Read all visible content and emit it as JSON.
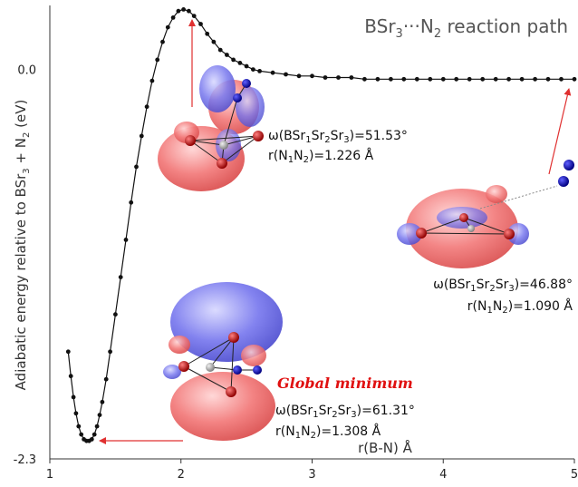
{
  "chart_data": {
    "type": "line",
    "title": "BSr3···N2 reaction path",
    "title_parts": {
      "main": "BSr",
      "sub1": "3",
      "mid": "···N",
      "sub2": "2",
      "tail": " reaction path"
    },
    "xlabel": "r(B-N) Å",
    "ylabel": "Adiabatic energy relative to BSr3 + N2 (eV)",
    "ylabel_parts": {
      "main": "Adiabatic energy relative to BSr",
      "sub1": "3",
      "mid": " + N",
      "sub2": "2",
      "tail": " (eV)"
    },
    "xlim": [
      1,
      5
    ],
    "ylim": [
      -2.3,
      0.35
    ],
    "xticks": [
      "1",
      "2",
      "3",
      "4",
      "5"
    ],
    "yticks": [
      {
        "value": 0.0,
        "label": "0.0"
      },
      {
        "value": -2.3,
        "label": "-2.3"
      }
    ],
    "grid": false,
    "x": [
      1.14,
      1.16,
      1.18,
      1.2,
      1.22,
      1.24,
      1.26,
      1.28,
      1.3,
      1.32,
      1.34,
      1.36,
      1.38,
      1.4,
      1.43,
      1.46,
      1.5,
      1.54,
      1.58,
      1.62,
      1.66,
      1.7,
      1.74,
      1.78,
      1.82,
      1.86,
      1.9,
      1.94,
      1.98,
      2.02,
      2.06,
      2.1,
      2.15,
      2.2,
      2.25,
      2.3,
      2.35,
      2.4,
      2.45,
      2.5,
      2.55,
      2.6,
      2.7,
      2.8,
      2.9,
      3.0,
      3.1,
      3.2,
      3.3,
      3.4,
      3.5,
      3.6,
      3.7,
      3.8,
      3.9,
      4.0,
      4.1,
      4.2,
      4.3,
      4.4,
      4.5,
      4.6,
      4.7,
      4.8,
      4.9,
      5.0
    ],
    "y": [
      -1.74,
      -1.89,
      -2.02,
      -2.12,
      -2.2,
      -2.25,
      -2.28,
      -2.29,
      -2.29,
      -2.28,
      -2.25,
      -2.2,
      -2.13,
      -2.05,
      -1.91,
      -1.74,
      -1.51,
      -1.28,
      -1.05,
      -0.82,
      -0.6,
      -0.41,
      -0.23,
      -0.07,
      0.06,
      0.17,
      0.26,
      0.32,
      0.36,
      0.37,
      0.36,
      0.33,
      0.28,
      0.22,
      0.17,
      0.12,
      0.09,
      0.06,
      0.04,
      0.02,
      0.0,
      -0.01,
      -0.02,
      -0.03,
      -0.04,
      -0.04,
      -0.05,
      -0.05,
      -0.05,
      -0.06,
      -0.06,
      -0.06,
      -0.06,
      -0.06,
      -0.06,
      -0.06,
      -0.06,
      -0.06,
      -0.06,
      -0.06,
      -0.06,
      -0.06,
      -0.06,
      -0.06,
      -0.06,
      -0.06
    ],
    "annotations": [
      {
        "id": "ts",
        "line1_pre": "ω(BSr",
        "line1_parts": [
          "1",
          "Sr",
          "2",
          "Sr",
          "3"
        ],
        "line1_post": ")=51.53°",
        "line2_pre": "r(N",
        "line2_mid": "N",
        "line2_post": ")=1.226 Å",
        "s1": "1",
        "s2": "2"
      },
      {
        "id": "dissociated",
        "line1_pre": "ω(BSr",
        "line1_parts": [
          "1",
          "Sr",
          "2",
          "Sr",
          "3"
        ],
        "line1_post": ")=46.88°",
        "line2_pre": "r(N",
        "line2_mid": "N",
        "line2_post": ")=1.090 Å",
        "s1": "1",
        "s2": "2"
      },
      {
        "id": "minimum",
        "line1_pre": "ω(BSr",
        "line1_parts": [
          "1",
          "Sr",
          "2",
          "Sr",
          "3"
        ],
        "line1_post": ")=61.31°",
        "line2_pre": "r(N",
        "line2_mid": "N",
        "line2_post": ")=1.308 Å",
        "s1": "1",
        "s2": "2"
      }
    ],
    "global_minimum_label": "Global minimum",
    "colors": {
      "line": "#111111",
      "arrow": "#e03030",
      "lobe_red": "#f07070",
      "lobe_blue": "#6a6ae8",
      "highlight": "#e01010"
    }
  }
}
